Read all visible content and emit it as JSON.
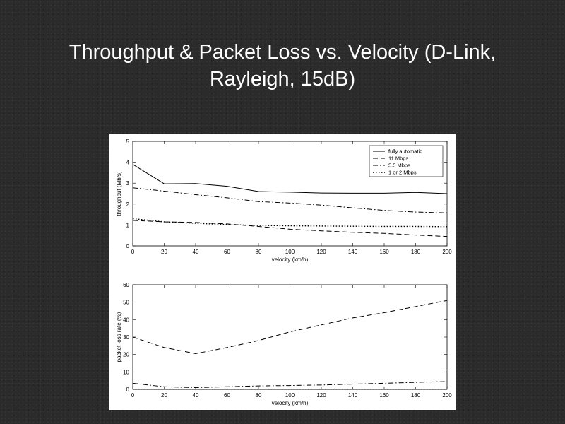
{
  "slide": {
    "title": "Throughput & Packet Loss vs. Velocity (D-Link,\nRayleigh, 15dB)"
  },
  "chart_data": [
    {
      "type": "line",
      "xlabel": "velocity (km/h)",
      "ylabel": "throughput (Mb/s)",
      "xlim": [
        0,
        200
      ],
      "ylim": [
        0,
        5
      ],
      "xticks": [
        0,
        20,
        40,
        60,
        80,
        100,
        120,
        140,
        160,
        180,
        200
      ],
      "yticks": [
        0,
        1,
        2,
        3,
        4,
        5
      ],
      "grid": false,
      "legend_position": "top-right",
      "x": [
        0,
        20,
        40,
        60,
        80,
        100,
        120,
        140,
        160,
        180,
        200
      ],
      "series": [
        {
          "name": "fully automatic",
          "style": "solid",
          "values": [
            3.9,
            2.97,
            2.98,
            2.85,
            2.6,
            2.57,
            2.53,
            2.52,
            2.52,
            2.56,
            2.5
          ]
        },
        {
          "name": "11 Mbps",
          "style": "dashed",
          "values": [
            1.22,
            1.15,
            1.12,
            1.05,
            0.93,
            0.8,
            0.72,
            0.65,
            0.6,
            0.52,
            0.45
          ]
        },
        {
          "name": "5.5 Mbps",
          "style": "dashdot",
          "values": [
            2.78,
            2.62,
            2.45,
            2.3,
            2.12,
            2.05,
            1.95,
            1.82,
            1.7,
            1.62,
            1.58
          ]
        },
        {
          "name": "1 or 2 Mbps",
          "style": "dotted",
          "values": [
            1.3,
            1.15,
            1.08,
            1.02,
            0.98,
            0.96,
            0.95,
            0.94,
            0.93,
            0.93,
            0.92
          ]
        }
      ]
    },
    {
      "type": "line",
      "xlabel": "velocity (km/h)",
      "ylabel": "packet loss rate (%)",
      "xlim": [
        0,
        200
      ],
      "ylim": [
        0,
        60
      ],
      "xticks": [
        0,
        20,
        40,
        60,
        80,
        100,
        120,
        140,
        160,
        180,
        200
      ],
      "yticks": [
        0,
        10,
        20,
        30,
        40,
        50,
        60
      ],
      "grid": false,
      "x": [
        0,
        20,
        40,
        60,
        80,
        100,
        120,
        140,
        160,
        180,
        200
      ],
      "series": [
        {
          "style": "solid",
          "values": [
            0.1,
            0.1,
            0.1,
            0.1,
            0.1,
            0.1,
            0.1,
            0.1,
            0.1,
            0.1,
            0.1
          ]
        },
        {
          "style": "dashed",
          "values": [
            30,
            24,
            20.5,
            24,
            28,
            33,
            37,
            41,
            44,
            47.5,
            51
          ]
        },
        {
          "style": "dashdot",
          "values": [
            3.5,
            1.5,
            1,
            1.5,
            2,
            2.2,
            2.5,
            3,
            3.5,
            4,
            4.5
          ]
        },
        {
          "style": "dotted",
          "values": [
            0.1,
            0.1,
            0.1,
            0.1,
            0.1,
            0.1,
            0.1,
            0.1,
            0.1,
            0.1,
            0.1
          ]
        }
      ]
    }
  ]
}
